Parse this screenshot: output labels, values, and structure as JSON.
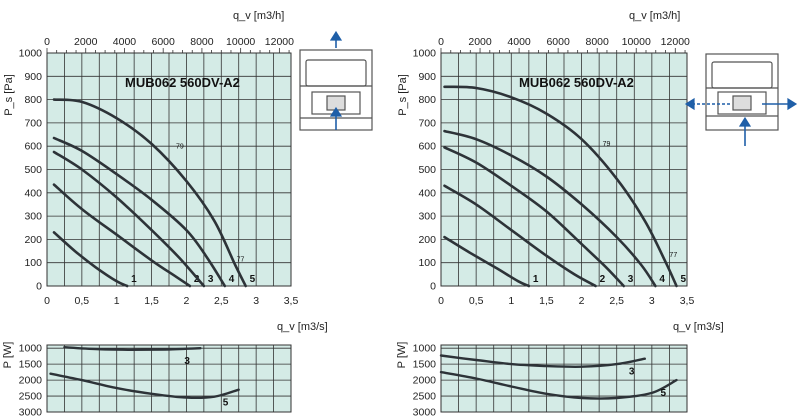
{
  "chart_data": [
    {
      "type": "line",
      "title": "MUB062 560DV-A2",
      "xlabel": "q_v [m3/s]",
      "ylabel": "P_s [Pa]",
      "x2label": "q_v [m3/h]",
      "xlim": [
        0,
        3.5
      ],
      "ylim": [
        0,
        1000
      ],
      "x2lim": [
        0,
        12600
      ],
      "x_ticks": [
        "0",
        "0,5",
        "1",
        "1,5",
        "2",
        "2,5",
        "3",
        "3,5"
      ],
      "y_ticks": [
        "0",
        "100",
        "200",
        "300",
        "400",
        "500",
        "600",
        "700",
        "800",
        "900",
        "1000"
      ],
      "x2_ticks": [
        "0",
        "2000",
        "4000",
        "6000",
        "8000",
        "10000",
        "12000"
      ],
      "series": [
        {
          "name": "1",
          "x": [
            0.1,
            0.4,
            0.7,
            1.0,
            1.15
          ],
          "y": [
            230,
            150,
            80,
            20,
            0
          ]
        },
        {
          "name": "2",
          "x": [
            0.1,
            0.5,
            1.0,
            1.5,
            1.85,
            2.05
          ],
          "y": [
            435,
            330,
            220,
            110,
            40,
            0
          ]
        },
        {
          "name": "3",
          "x": [
            0.1,
            0.5,
            1.0,
            1.5,
            1.9,
            2.25
          ],
          "y": [
            575,
            500,
            380,
            240,
            120,
            0
          ]
        },
        {
          "name": "4",
          "x": [
            0.1,
            0.5,
            1.0,
            1.5,
            2.0,
            2.3,
            2.55
          ],
          "y": [
            635,
            580,
            480,
            370,
            240,
            120,
            0
          ]
        },
        {
          "name": "5",
          "x": [
            0.1,
            0.5,
            1.0,
            1.5,
            2.0,
            2.4,
            2.7,
            2.85
          ],
          "y": [
            800,
            790,
            720,
            610,
            450,
            280,
            90,
            0
          ]
        }
      ],
      "annotations": [
        {
          "text": "79",
          "x": 1.85,
          "y": 590
        },
        {
          "text": "77",
          "x": 2.72,
          "y": 105
        }
      ],
      "power_chart": {
        "ylabel": "P [W]",
        "y_ticks": [
          "1000",
          "1500",
          "2000",
          "2500",
          "3000"
        ],
        "ylim": [
          3000,
          900
        ],
        "series": [
          {
            "name": "3",
            "x": [
              0.25,
              0.7,
              1.2,
              1.7,
              2.2
            ],
            "y": [
              970,
              1030,
              1050,
              1040,
              1000
            ]
          },
          {
            "name": "5",
            "x": [
              0.05,
              0.5,
              1.0,
              1.5,
              2.0,
              2.4,
              2.75
            ],
            "y": [
              1800,
              2000,
              2250,
              2430,
              2550,
              2520,
              2300
            ]
          }
        ]
      }
    },
    {
      "type": "line",
      "title": "MUB062 560DV-A2",
      "xlabel": "q_v [m3/s]",
      "ylabel": "P_s [Pa]",
      "x2label": "q_v [m3/h]",
      "xlim": [
        0,
        3.5
      ],
      "ylim": [
        0,
        1000
      ],
      "x2lim": [
        0,
        12600
      ],
      "x_ticks": [
        "0",
        "0,5",
        "1",
        "1,5",
        "2",
        "2,5",
        "3",
        "3,5"
      ],
      "y_ticks": [
        "0",
        "100",
        "200",
        "300",
        "400",
        "500",
        "600",
        "700",
        "800",
        "900",
        "1000"
      ],
      "x2_ticks": [
        "0",
        "2000",
        "4000",
        "6000",
        "8000",
        "10000",
        "12000"
      ],
      "series": [
        {
          "name": "1",
          "x": [
            0.05,
            0.4,
            0.8,
            1.1,
            1.25
          ],
          "y": [
            210,
            145,
            75,
            20,
            0
          ]
        },
        {
          "name": "2",
          "x": [
            0.05,
            0.5,
            1.0,
            1.5,
            1.9,
            2.2
          ],
          "y": [
            430,
            350,
            240,
            130,
            50,
            0
          ]
        },
        {
          "name": "3",
          "x": [
            0.05,
            0.5,
            1.0,
            1.5,
            2.0,
            2.35,
            2.6
          ],
          "y": [
            595,
            530,
            430,
            320,
            180,
            80,
            0
          ]
        },
        {
          "name": "4",
          "x": [
            0.05,
            0.5,
            1.0,
            1.5,
            2.0,
            2.5,
            2.85,
            3.05
          ],
          "y": [
            665,
            630,
            560,
            470,
            350,
            210,
            90,
            0
          ]
        },
        {
          "name": "5",
          "x": [
            0.05,
            0.5,
            1.0,
            1.5,
            2.0,
            2.5,
            2.9,
            3.2,
            3.35
          ],
          "y": [
            855,
            850,
            810,
            740,
            630,
            460,
            280,
            100,
            0
          ]
        }
      ],
      "annotations": [
        {
          "text": "79",
          "x": 2.3,
          "y": 600
        },
        {
          "text": "77",
          "x": 3.25,
          "y": 125
        }
      ],
      "power_chart": {
        "ylabel": "P [W]",
        "y_ticks": [
          "1000",
          "1500",
          "2000",
          "2500",
          "3000"
        ],
        "ylim": [
          3000,
          900
        ],
        "series": [
          {
            "name": "3",
            "x": [
              0.0,
              0.5,
              1.0,
              1.5,
              2.0,
              2.5,
              2.9
            ],
            "y": [
              1230,
              1370,
              1500,
              1560,
              1580,
              1500,
              1330
            ]
          },
          {
            "name": "5",
            "x": [
              0.0,
              0.5,
              1.0,
              1.5,
              2.0,
              2.5,
              3.0,
              3.35
            ],
            "y": [
              1750,
              1950,
              2200,
              2430,
              2560,
              2560,
              2400,
              2000
            ]
          }
        ]
      }
    }
  ]
}
